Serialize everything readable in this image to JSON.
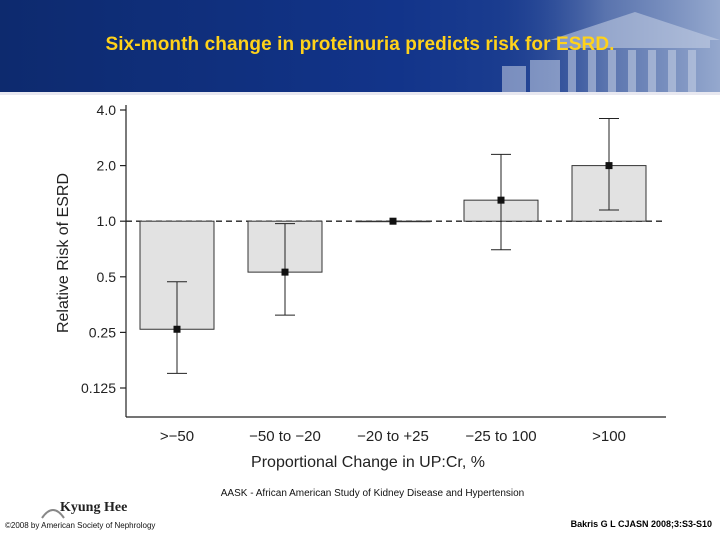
{
  "slide": {
    "title": "Six-month change in proteinuria predicts risk for ESRD.",
    "footnote": "AASK - African American Study of Kidney Disease and Hypertension",
    "logo_text": "Kyung Hee",
    "copyright": "©2008 by American Society of Nephrology",
    "citation": "Bakris G L CJASN 2008;3:S3-S10"
  },
  "colors": {
    "header": "#12348a",
    "title": "#ffd21a",
    "bar_fill": "#e2e2e2",
    "bar_stroke": "#333333"
  },
  "chart_data": {
    "type": "bar",
    "scale": "log",
    "title": "",
    "xlabel": "Proportional Change in UP:Cr, %",
    "ylabel": "Relative Risk of ESRD",
    "ylim": [
      0.1,
      4.0
    ],
    "yticks": [
      4.0,
      2.0,
      1.0,
      0.5,
      0.25,
      0.125
    ],
    "ytick_labels": [
      "4.0",
      "2.0",
      "1.0",
      "0.5",
      "0.25",
      "0.125"
    ],
    "reference_line": 1.0,
    "categories": [
      ">−50",
      "−50 to −20",
      "−20 to +25",
      "−25 to 100",
      ">100"
    ],
    "values": [
      0.26,
      0.53,
      1.0,
      1.3,
      2.0
    ],
    "ci_lower": [
      0.15,
      0.31,
      1.0,
      0.7,
      1.15
    ],
    "ci_upper": [
      0.47,
      0.97,
      1.0,
      2.3,
      3.6
    ]
  }
}
